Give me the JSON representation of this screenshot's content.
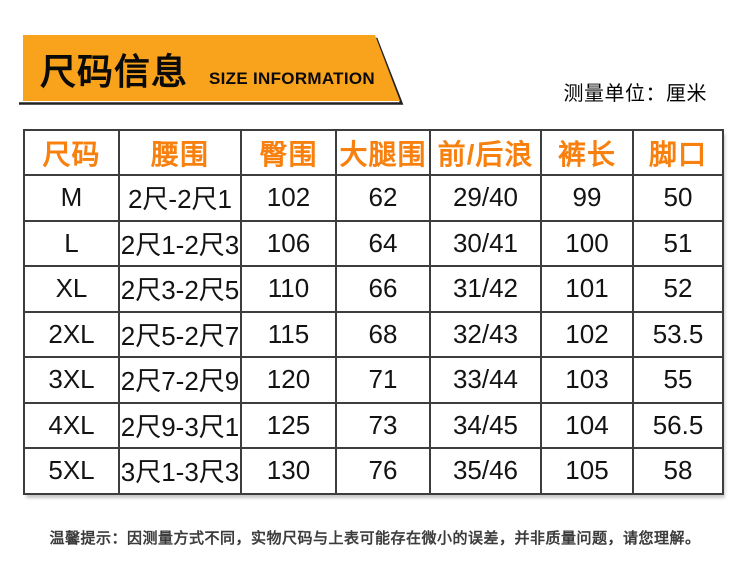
{
  "header": {
    "banner_title": "尺码信息",
    "banner_subtitle": "SIZE INFORMATION",
    "unit_label": "测量单位：厘米"
  },
  "table": {
    "columns": [
      "尺码",
      "腰围",
      "臀围",
      "大腿围",
      "前/后浪",
      "裤长",
      "脚口"
    ],
    "rows": [
      [
        "M",
        "2尺-2尺1",
        "102",
        "62",
        "29/40",
        "99",
        "50"
      ],
      [
        "L",
        "2尺1-2尺3",
        "106",
        "64",
        "30/41",
        "100",
        "51"
      ],
      [
        "XL",
        "2尺3-2尺5",
        "110",
        "66",
        "31/42",
        "101",
        "52"
      ],
      [
        "2XL",
        "2尺5-2尺7",
        "115",
        "68",
        "32/43",
        "102",
        "53.5"
      ],
      [
        "3XL",
        "2尺7-2尺9",
        "120",
        "71",
        "33/44",
        "103",
        "55"
      ],
      [
        "4XL",
        "2尺9-3尺1",
        "125",
        "73",
        "34/45",
        "104",
        "56.5"
      ],
      [
        "5XL",
        "3尺1-3尺3",
        "130",
        "76",
        "35/46",
        "105",
        "58"
      ]
    ]
  },
  "footer": {
    "note": "温馨提示：因测量方式不同，实物尺码与上表可能存在微小的误差，并非质量问题，请您理解。"
  },
  "colors": {
    "banner_orange": "#F9A21C",
    "header_text_orange": "#F8800F",
    "table_border": "#3d3d3d",
    "cell_text": "#131313",
    "note_text": "#3c3c3c"
  }
}
